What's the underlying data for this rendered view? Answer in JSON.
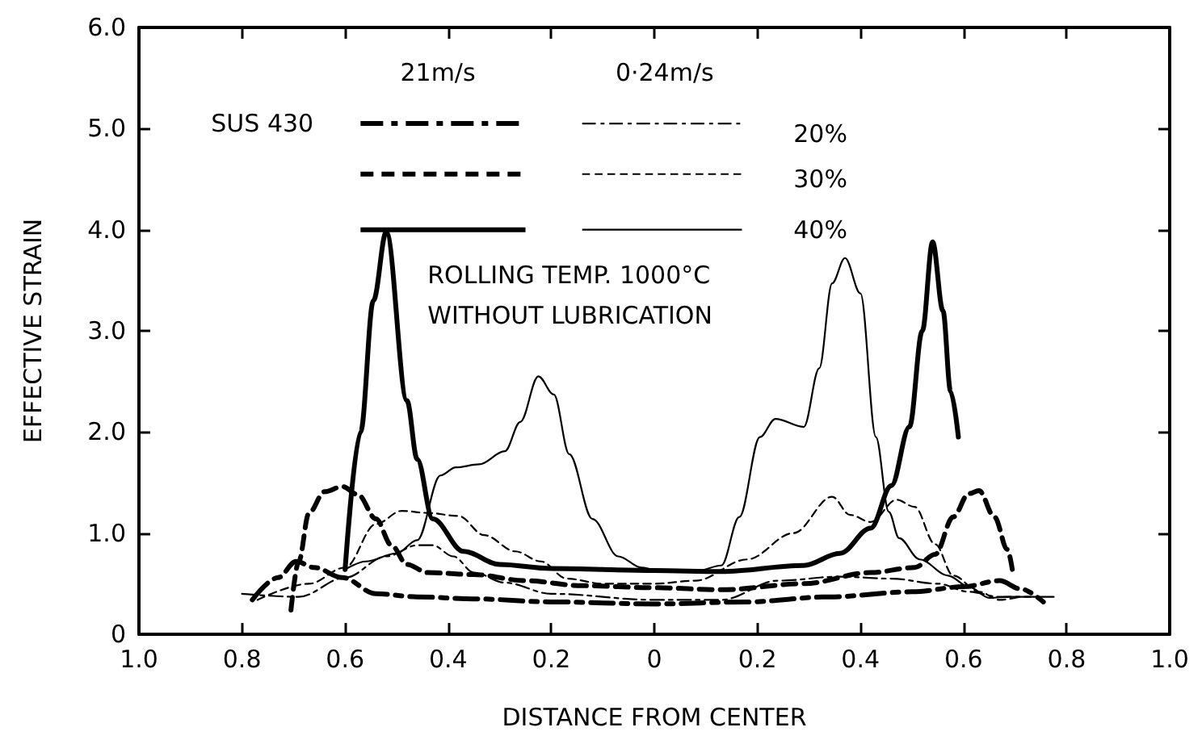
{
  "chart_data": {
    "type": "line",
    "xlabel": "DISTANCE FROM CENTER",
    "ylabel": "EFFECTIVE STRAIN",
    "xlim": [
      -1,
      1
    ],
    "xticks": [
      {
        "value": -1,
        "label": "1.0"
      },
      {
        "value": -0.8,
        "label": "0.8"
      },
      {
        "value": -0.6,
        "label": "0.6"
      },
      {
        "value": -0.4,
        "label": "0.4"
      },
      {
        "value": -0.2,
        "label": "0.2"
      },
      0,
      {
        "value": 0.2,
        "label": "0.2"
      },
      {
        "value": 0.4,
        "label": "0.4"
      },
      {
        "value": 0.6,
        "label": "0.6"
      },
      {
        "value": 0.8,
        "label": "0.8"
      },
      {
        "value": 1,
        "label": "1.0"
      }
    ],
    "ylim": [
      0,
      6
    ],
    "yticks": [
      0,
      {
        "value": 1,
        "label": "1.0"
      },
      {
        "value": 2,
        "label": "2.0"
      },
      {
        "value": 3,
        "label": "3.0"
      },
      {
        "value": 4,
        "label": "4.0"
      },
      {
        "value": 5,
        "label": "5.0"
      },
      {
        "value": 6,
        "label": "6.0"
      }
    ],
    "annotations": [
      "SUS 430",
      "21m/s",
      "0·24m/s",
      "20%",
      "30%",
      "40%",
      "ROLLING TEMP. 1000°C",
      "WITHOUT LUBRICATION"
    ],
    "series": [
      {
        "color": "#000000",
        "line_style": "dashdot",
        "x": [
          -0.78,
          -0.73,
          -0.695,
          -0.66,
          -0.605,
          -0.54,
          -0.46,
          -0.35,
          -0.2,
          0,
          0.18,
          0.34,
          0.5,
          0.6,
          0.67,
          0.71,
          0.755
        ],
        "values": [
          0.34,
          0.56,
          0.72,
          0.66,
          0.56,
          0.4,
          0.37,
          0.35,
          0.32,
          0.3,
          0.32,
          0.37,
          0.42,
          0.47,
          0.53,
          0.45,
          0.32
        ]
      },
      {
        "color": "#000000",
        "line_style": "dashed",
        "x": [
          -0.705,
          -0.69,
          -0.67,
          -0.64,
          -0.605,
          -0.575,
          -0.54,
          -0.51,
          -0.48,
          -0.44,
          -0.35,
          -0.25,
          -0.14,
          0,
          0.13,
          0.29,
          0.42,
          0.505,
          0.545,
          0.58,
          0.61,
          0.63,
          0.66,
          0.685,
          0.695
        ],
        "values": [
          0.24,
          0.72,
          1.2,
          1.41,
          1.46,
          1.38,
          1.14,
          0.88,
          0.69,
          0.61,
          0.59,
          0.53,
          0.48,
          0.46,
          0.44,
          0.5,
          0.61,
          0.66,
          0.79,
          1.16,
          1.39,
          1.42,
          1.16,
          0.84,
          0.63
        ]
      },
      {
        "color": "#000000",
        "line_style": "solid",
        "x": [
          -0.6,
          -0.57,
          -0.545,
          -0.52,
          -0.48,
          -0.46,
          -0.43,
          -0.37,
          -0.3,
          -0.2,
          0,
          0.13,
          0.29,
          0.36,
          0.42,
          0.46,
          0.495,
          0.52,
          0.54,
          0.56,
          0.575,
          0.59
        ],
        "values": [
          0.64,
          2.0,
          3.3,
          3.98,
          2.31,
          1.73,
          1.14,
          0.82,
          0.69,
          0.65,
          0.63,
          0.62,
          0.68,
          0.8,
          1.05,
          1.47,
          2.05,
          3.0,
          3.88,
          3.2,
          2.4,
          1.95
        ]
      },
      {
        "color": "#000000",
        "line_style": "dashdot",
        "x": [
          -0.8,
          -0.69,
          -0.6,
          -0.52,
          -0.46,
          -0.43,
          -0.39,
          -0.35,
          -0.29,
          -0.2,
          0,
          0.13,
          0.24,
          0.36,
          0.46,
          0.55,
          0.61,
          0.67,
          0.73
        ],
        "values": [
          0.4,
          0.37,
          0.56,
          0.77,
          0.88,
          0.88,
          0.77,
          0.61,
          0.51,
          0.4,
          0.34,
          0.34,
          0.53,
          0.57,
          0.55,
          0.5,
          0.42,
          0.37,
          0.37
        ]
      },
      {
        "color": "#000000",
        "line_style": "dashed",
        "x": [
          -0.77,
          -0.67,
          -0.6,
          -0.54,
          -0.49,
          -0.44,
          -0.38,
          -0.33,
          -0.27,
          -0.22,
          -0.17,
          -0.1,
          0,
          0.08,
          0.18,
          0.27,
          0.345,
          0.38,
          0.42,
          0.47,
          0.505,
          0.545,
          0.58,
          0.63,
          0.67,
          0.71
        ],
        "values": [
          0.34,
          0.5,
          0.66,
          1.09,
          1.22,
          1.2,
          1.17,
          0.98,
          0.82,
          0.72,
          0.55,
          0.5,
          0.5,
          0.53,
          0.74,
          1.0,
          1.36,
          1.18,
          1.11,
          1.33,
          1.26,
          0.89,
          0.58,
          0.42,
          0.34,
          0.37
        ]
      },
      {
        "color": "#000000",
        "line_style": "solid",
        "x": [
          -0.6,
          -0.56,
          -0.5,
          -0.46,
          -0.415,
          -0.385,
          -0.34,
          -0.29,
          -0.26,
          -0.225,
          -0.195,
          -0.165,
          -0.12,
          -0.07,
          -0.025,
          0,
          0.08,
          0.13,
          0.165,
          0.205,
          0.235,
          0.29,
          0.32,
          0.345,
          0.37,
          0.4,
          0.43,
          0.455,
          0.475,
          0.515,
          0.57,
          0.61,
          0.65,
          0.69,
          0.775
        ],
        "values": [
          0.64,
          0.72,
          0.8,
          0.93,
          1.57,
          1.65,
          1.68,
          1.81,
          2.1,
          2.55,
          2.37,
          1.78,
          1.14,
          0.77,
          0.66,
          0.64,
          0.62,
          0.68,
          1.16,
          1.95,
          2.13,
          2.05,
          2.63,
          3.47,
          3.72,
          3.37,
          1.95,
          1.21,
          0.95,
          0.74,
          0.58,
          0.47,
          0.36,
          0.37,
          0.37
        ]
      }
    ]
  }
}
